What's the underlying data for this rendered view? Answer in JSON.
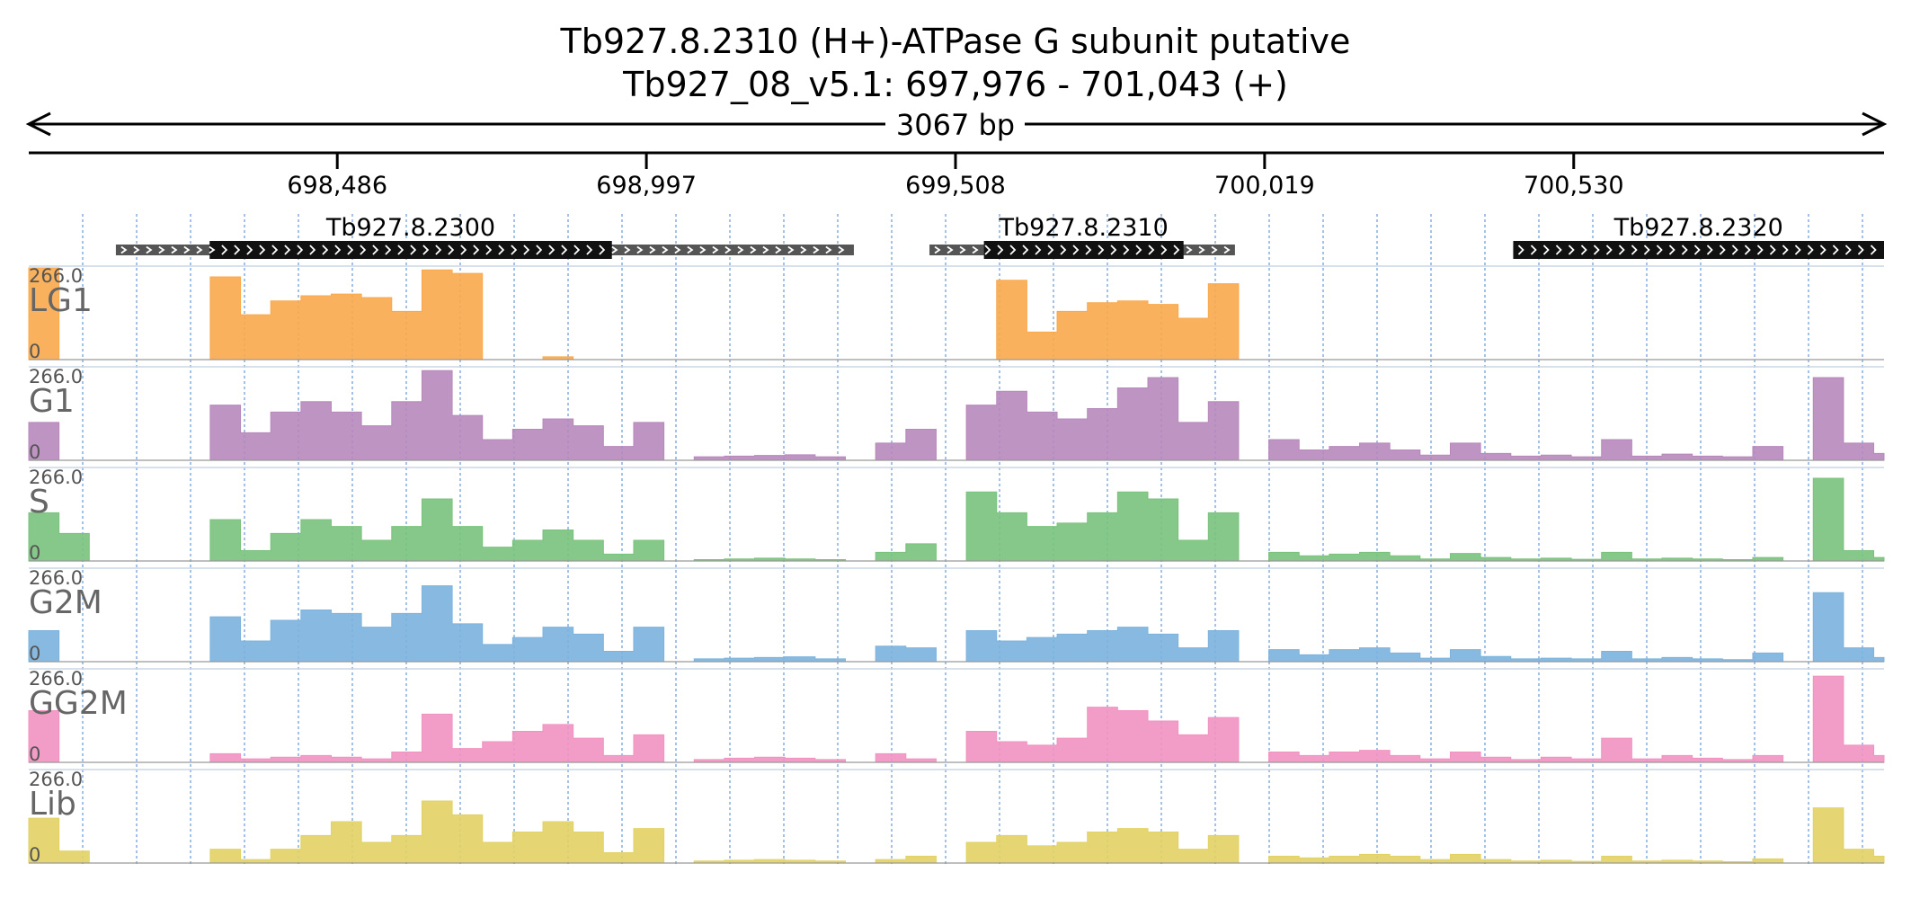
{
  "title": {
    "gene_line": "Tb927.8.2310  (H+)-ATPase G subunit  putative",
    "locus_line": "Tb927_08_v5.1: 697,976 - 701,043 (+)"
  },
  "span_label": "3067 bp",
  "axis": {
    "start": 697976,
    "end": 701043,
    "ticks": [
      698486,
      698997,
      699508,
      700019,
      700530
    ],
    "tick_labels": [
      "698,486",
      "698,997",
      "699,508",
      "700,019",
      "700,530"
    ]
  },
  "genes": [
    {
      "name": "Tb927.8.2300",
      "start": 698120,
      "end": 699340,
      "cds_start": 698275,
      "cds_end": 698940
    },
    {
      "name": "Tb927.8.2310",
      "start": 699465,
      "end": 699970,
      "cds_start": 699555,
      "cds_end": 699885
    },
    {
      "name": "Tb927.8.2320",
      "start": 700430,
      "end": 701043,
      "cds_start": 700430,
      "cds_end": 701043
    }
  ],
  "chart_data": {
    "type": "area",
    "x": [
      697976,
      698026,
      698076,
      698126,
      698176,
      698226,
      698276,
      698326,
      698376,
      698426,
      698476,
      698526,
      698576,
      698626,
      698676,
      698726,
      698776,
      698826,
      698876,
      698926,
      698976,
      699026,
      699076,
      699126,
      699176,
      699226,
      699276,
      699326,
      699376,
      699426,
      699476,
      699526,
      699576,
      699626,
      699676,
      699726,
      699776,
      699826,
      699876,
      699926,
      699976,
      700026,
      700076,
      700126,
      700176,
      700226,
      700276,
      700326,
      700376,
      700426,
      700476,
      700526,
      700576,
      700626,
      700676,
      700726,
      700776,
      700826,
      700876,
      700926,
      700976,
      701026
    ],
    "ylim": [
      0,
      266.0
    ],
    "y_max_label": "266.0",
    "y_min_label": "0",
    "series": [
      {
        "name": "LG1",
        "color": "#f9a94b",
        "values": [
          266,
          0,
          0,
          0,
          0,
          0,
          240,
          130,
          170,
          185,
          190,
          180,
          140,
          260,
          250,
          0,
          0,
          8,
          0,
          0,
          0,
          0,
          0,
          0,
          0,
          0,
          0,
          0,
          0,
          0,
          0,
          0,
          230,
          80,
          140,
          165,
          170,
          160,
          120,
          220,
          0,
          0,
          0,
          0,
          0,
          0,
          0,
          0,
          0,
          0,
          0,
          0,
          0,
          0,
          0,
          0,
          0,
          0,
          0,
          0,
          0,
          0
        ]
      },
      {
        "name": "G1",
        "color": "#b788bc",
        "values": [
          110,
          0,
          0,
          0,
          0,
          0,
          160,
          80,
          140,
          170,
          140,
          100,
          170,
          260,
          130,
          60,
          90,
          120,
          100,
          40,
          110,
          0,
          10,
          12,
          14,
          16,
          10,
          0,
          50,
          90,
          0,
          160,
          200,
          140,
          120,
          150,
          210,
          240,
          110,
          170,
          0,
          60,
          30,
          40,
          50,
          30,
          15,
          50,
          20,
          12,
          15,
          10,
          60,
          12,
          18,
          12,
          10,
          40,
          0,
          240,
          50,
          20
        ]
      },
      {
        "name": "S",
        "color": "#79c27c",
        "values": [
          140,
          80,
          0,
          0,
          0,
          0,
          120,
          30,
          80,
          120,
          100,
          60,
          100,
          180,
          100,
          40,
          60,
          90,
          60,
          20,
          60,
          0,
          4,
          6,
          8,
          6,
          4,
          0,
          25,
          50,
          0,
          200,
          140,
          100,
          110,
          140,
          200,
          180,
          60,
          140,
          0,
          25,
          15,
          20,
          25,
          15,
          6,
          22,
          10,
          6,
          8,
          5,
          25,
          6,
          8,
          6,
          4,
          10,
          0,
          240,
          30,
          10
        ]
      },
      {
        "name": "G2M",
        "color": "#7bb3de",
        "values": [
          90,
          0,
          0,
          0,
          0,
          0,
          130,
          60,
          120,
          150,
          140,
          100,
          140,
          220,
          110,
          50,
          70,
          100,
          80,
          30,
          100,
          0,
          8,
          10,
          12,
          14,
          8,
          0,
          45,
          40,
          0,
          90,
          60,
          70,
          80,
          90,
          100,
          80,
          40,
          90,
          0,
          35,
          20,
          35,
          40,
          25,
          10,
          35,
          15,
          8,
          10,
          8,
          30,
          8,
          12,
          8,
          6,
          25,
          0,
          200,
          40,
          12
        ]
      },
      {
        "name": "GG2M",
        "color": "#f192c1",
        "values": [
          150,
          0,
          0,
          0,
          0,
          0,
          25,
          10,
          15,
          20,
          15,
          10,
          30,
          140,
          40,
          60,
          90,
          110,
          70,
          20,
          80,
          0,
          8,
          12,
          15,
          12,
          8,
          0,
          25,
          10,
          0,
          90,
          60,
          50,
          70,
          160,
          150,
          120,
          80,
          130,
          0,
          30,
          20,
          30,
          35,
          20,
          10,
          30,
          15,
          8,
          15,
          10,
          70,
          10,
          20,
          12,
          8,
          20,
          0,
          250,
          50,
          20
        ]
      },
      {
        "name": "Lib",
        "color": "#e2d264",
        "values": [
          130,
          35,
          0,
          0,
          0,
          0,
          40,
          10,
          40,
          80,
          120,
          60,
          80,
          180,
          140,
          60,
          90,
          120,
          90,
          30,
          100,
          0,
          6,
          8,
          10,
          8,
          6,
          0,
          10,
          20,
          0,
          60,
          80,
          50,
          60,
          90,
          100,
          90,
          40,
          80,
          0,
          20,
          15,
          20,
          25,
          20,
          10,
          25,
          10,
          6,
          8,
          5,
          20,
          6,
          8,
          6,
          4,
          12,
          0,
          160,
          40,
          20
        ]
      }
    ]
  }
}
